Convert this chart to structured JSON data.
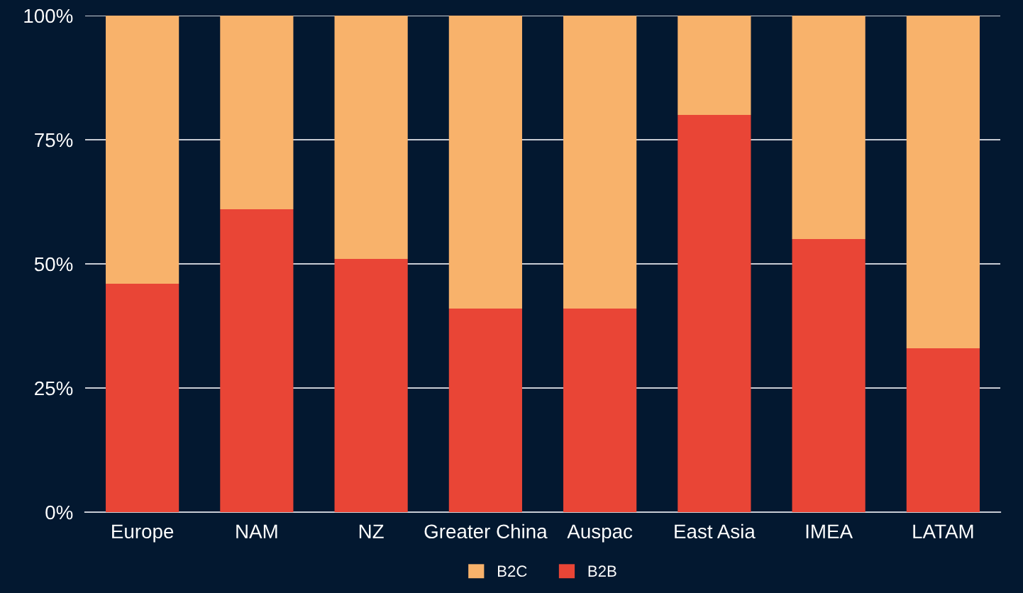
{
  "chart_data": {
    "type": "bar",
    "stacked": true,
    "categories": [
      "Europe",
      "NAM",
      "NZ",
      "Greater China",
      "Auspac",
      "East Asia",
      "IMEA",
      "LATAM"
    ],
    "series": [
      {
        "name": "B2B",
        "color": "#e94536",
        "values": [
          46,
          61,
          51,
          41,
          41,
          80,
          55,
          33
        ]
      },
      {
        "name": "B2C",
        "color": "#f8b26b",
        "values": [
          54,
          39,
          49,
          59,
          59,
          20,
          45,
          67
        ]
      }
    ],
    "ylim": [
      0,
      100
    ],
    "yticks": [
      {
        "value": 0,
        "label": "0%"
      },
      {
        "value": 25,
        "label": "25%"
      },
      {
        "value": 50,
        "label": "50%"
      },
      {
        "value": 75,
        "label": "75%"
      },
      {
        "value": 100,
        "label": "100%"
      }
    ],
    "grid": "y",
    "legend": "bottom"
  }
}
